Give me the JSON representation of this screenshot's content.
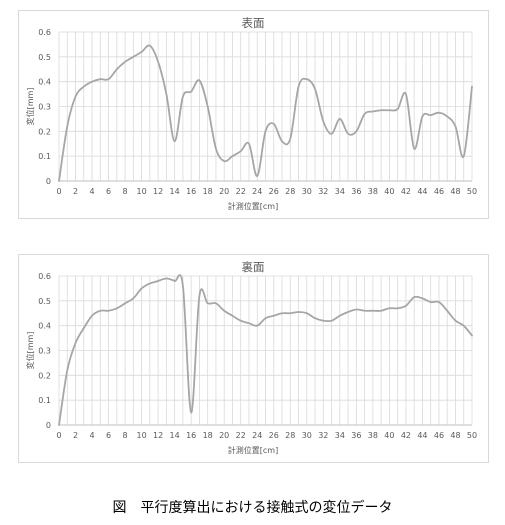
{
  "chart_data": [
    {
      "type": "line",
      "title": "表面",
      "xlabel": "計測位置[cm]",
      "ylabel": "変位[mm]",
      "xlim": [
        0,
        50
      ],
      "ylim": [
        0,
        0.6
      ],
      "xticks": [
        "0",
        "2",
        "4",
        "6",
        "8",
        "10",
        "12",
        "14",
        "16",
        "18",
        "20",
        "22",
        "24",
        "26",
        "28",
        "30",
        "32",
        "34",
        "36",
        "38",
        "40",
        "42",
        "44",
        "46",
        "48",
        "50"
      ],
      "yticks": [
        "0",
        "0.1",
        "0.2",
        "0.3",
        "0.4",
        "0.5",
        "0.6"
      ],
      "grid": true,
      "series": [
        {
          "color": "#a6a6a6",
          "points": [
            [
              0,
              0
            ],
            [
              1,
              0.22
            ],
            [
              2,
              0.34
            ],
            [
              3,
              0.38
            ],
            [
              4,
              0.4
            ],
            [
              5,
              0.41
            ],
            [
              6,
              0.41
            ],
            [
              7,
              0.45
            ],
            [
              8,
              0.48
            ],
            [
              9,
              0.5
            ],
            [
              10,
              0.52
            ],
            [
              11,
              0.545
            ],
            [
              12,
              0.48
            ],
            [
              13,
              0.35
            ],
            [
              14,
              0.16
            ],
            [
              15,
              0.34
            ],
            [
              16,
              0.36
            ],
            [
              17,
              0.405
            ],
            [
              18,
              0.3
            ],
            [
              19,
              0.13
            ],
            [
              20,
              0.08
            ],
            [
              21,
              0.1
            ],
            [
              22,
              0.12
            ],
            [
              23,
              0.15
            ],
            [
              24,
              0.02
            ],
            [
              25,
              0.2
            ],
            [
              26,
              0.23
            ],
            [
              27,
              0.16
            ],
            [
              28,
              0.17
            ],
            [
              29,
              0.38
            ],
            [
              30,
              0.41
            ],
            [
              31,
              0.37
            ],
            [
              32,
              0.24
            ],
            [
              33,
              0.19
            ],
            [
              34,
              0.25
            ],
            [
              35,
              0.19
            ],
            [
              36,
              0.2
            ],
            [
              37,
              0.27
            ],
            [
              38,
              0.28
            ],
            [
              39,
              0.285
            ],
            [
              40,
              0.285
            ],
            [
              41,
              0.29
            ],
            [
              42,
              0.35
            ],
            [
              43,
              0.13
            ],
            [
              44,
              0.26
            ],
            [
              45,
              0.265
            ],
            [
              46,
              0.275
            ],
            [
              47,
              0.26
            ],
            [
              48,
              0.22
            ],
            [
              49,
              0.1
            ],
            [
              50,
              0.38
            ]
          ]
        }
      ]
    },
    {
      "type": "line",
      "title": "裏面",
      "xlabel": "計測位置[cm]",
      "ylabel": "変位[mm]",
      "xlim": [
        0,
        50
      ],
      "ylim": [
        0,
        0.6
      ],
      "xticks": [
        "0",
        "2",
        "4",
        "6",
        "8",
        "10",
        "12",
        "14",
        "16",
        "18",
        "20",
        "22",
        "24",
        "26",
        "28",
        "30",
        "32",
        "34",
        "36",
        "38",
        "40",
        "42",
        "44",
        "46",
        "48",
        "50"
      ],
      "yticks": [
        "0",
        "0.1",
        "0.2",
        "0.3",
        "0.4",
        "0.5",
        "0.6"
      ],
      "grid": true,
      "series": [
        {
          "color": "#a6a6a6",
          "points": [
            [
              0,
              0
            ],
            [
              1,
              0.22
            ],
            [
              2,
              0.33
            ],
            [
              3,
              0.39
            ],
            [
              4,
              0.44
            ],
            [
              5,
              0.46
            ],
            [
              6,
              0.46
            ],
            [
              7,
              0.47
            ],
            [
              8,
              0.49
            ],
            [
              9,
              0.51
            ],
            [
              10,
              0.55
            ],
            [
              11,
              0.57
            ],
            [
              12,
              0.58
            ],
            [
              13,
              0.59
            ],
            [
              14,
              0.58
            ],
            [
              15,
              0.56
            ],
            [
              16,
              0.05
            ],
            [
              17,
              0.52
            ],
            [
              18,
              0.49
            ],
            [
              19,
              0.49
            ],
            [
              20,
              0.46
            ],
            [
              21,
              0.44
            ],
            [
              22,
              0.42
            ],
            [
              23,
              0.41
            ],
            [
              24,
              0.4
            ],
            [
              25,
              0.43
            ],
            [
              26,
              0.44
            ],
            [
              27,
              0.45
            ],
            [
              28,
              0.45
            ],
            [
              29,
              0.455
            ],
            [
              30,
              0.45
            ],
            [
              31,
              0.43
            ],
            [
              32,
              0.42
            ],
            [
              33,
              0.42
            ],
            [
              34,
              0.44
            ],
            [
              35,
              0.455
            ],
            [
              36,
              0.465
            ],
            [
              37,
              0.46
            ],
            [
              38,
              0.46
            ],
            [
              39,
              0.46
            ],
            [
              40,
              0.47
            ],
            [
              41,
              0.47
            ],
            [
              42,
              0.48
            ],
            [
              43,
              0.515
            ],
            [
              44,
              0.51
            ],
            [
              45,
              0.495
            ],
            [
              46,
              0.495
            ],
            [
              47,
              0.46
            ],
            [
              48,
              0.42
            ],
            [
              49,
              0.4
            ],
            [
              50,
              0.36
            ]
          ]
        }
      ]
    }
  ],
  "caption": "図　平行度算出における接触式の変位データ"
}
